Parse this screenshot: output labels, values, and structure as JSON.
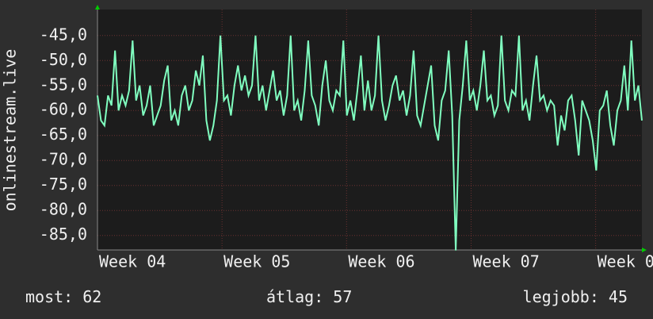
{
  "chart_data": {
    "type": "line",
    "ylabel": "onlinestream.live",
    "xlim": [
      0,
      30.6
    ],
    "xticks": [
      {
        "value": 0,
        "label": "Week 04"
      },
      {
        "value": 7,
        "label": "Week 05"
      },
      {
        "value": 14,
        "label": "Week 06"
      },
      {
        "value": 21,
        "label": "Week 07"
      },
      {
        "value": 28,
        "label": "Week 0"
      }
    ],
    "ylim": [
      -87.9,
      -39.8
    ],
    "yticks": [
      {
        "value": -45,
        "label": "-45,0"
      },
      {
        "value": -50,
        "label": "-50,0"
      },
      {
        "value": -55,
        "label": "-55,0"
      },
      {
        "value": -60,
        "label": "-60,0"
      },
      {
        "value": -65,
        "label": "-65,0"
      },
      {
        "value": -70,
        "label": "-70,0"
      },
      {
        "value": -75,
        "label": "-75,0"
      },
      {
        "value": -80,
        "label": "-80,0"
      },
      {
        "value": -85,
        "label": "-85,0"
      }
    ],
    "grid": true,
    "color": "#80ffc0",
    "values": [
      -57,
      -62,
      -63,
      -57,
      -59,
      -48,
      -60,
      -57,
      -59,
      -56,
      -46,
      -58,
      -55,
      -61,
      -59,
      -55,
      -63,
      -61,
      -59,
      -54,
      -51,
      -62,
      -60,
      -63,
      -57,
      -55,
      -60,
      -58,
      -52,
      -55,
      -49,
      -62,
      -66,
      -63,
      -58,
      -45,
      -58,
      -57,
      -61,
      -55,
      -51,
      -56,
      -53,
      -57,
      -55,
      -45,
      -58,
      -55,
      -60,
      -56,
      -52,
      -58,
      -56,
      -61,
      -57,
      -45,
      -60,
      -58,
      -62,
      -56,
      -46,
      -57,
      -59,
      -63,
      -55,
      -50,
      -58,
      -60,
      -56,
      -57,
      -46,
      -61,
      -58,
      -62,
      -56,
      -49,
      -60,
      -54,
      -60,
      -57,
      -45,
      -58,
      -62,
      -59,
      -55,
      -53,
      -58,
      -56,
      -61,
      -57,
      -48,
      -61,
      -63,
      -59,
      -55,
      -51,
      -63,
      -66,
      -58,
      -56,
      -48,
      -61,
      -88,
      -62,
      -55,
      -46,
      -58,
      -56,
      -60,
      -55,
      -48,
      -58,
      -57,
      -61,
      -59,
      -45,
      -58,
      -60,
      -56,
      -57,
      -45,
      -60,
      -58,
      -62,
      -55,
      -49,
      -58,
      -57,
      -60,
      -58,
      -59,
      -67,
      -61,
      -64,
      -58,
      -57,
      -62,
      -69,
      -58,
      -60,
      -62,
      -66,
      -72,
      -60,
      -59,
      -56,
      -63,
      -67,
      -60,
      -58,
      -51,
      -60,
      -46,
      -58,
      -55,
      -62
    ],
    "stats": [
      {
        "label": "most:",
        "value": 62
      },
      {
        "label": "átlag:",
        "value": 57
      },
      {
        "label": "legjobb:",
        "value": 45
      }
    ]
  }
}
